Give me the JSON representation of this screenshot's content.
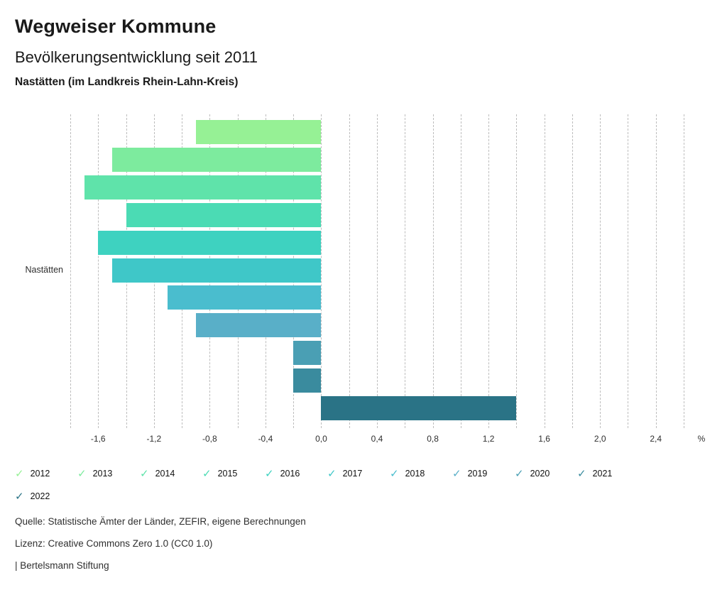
{
  "header": {
    "title": "Wegweiser Kommune",
    "subtitle": "Bevölkerungsentwicklung seit 2011",
    "region": "Nastätten (im Landkreis Rhein-Lahn-Kreis)"
  },
  "chart_data": {
    "type": "bar",
    "orientation": "horizontal",
    "title": "Bevölkerungsentwicklung seit 2011",
    "category": "Nastätten",
    "unit": "%",
    "xlim": [
      -1.8,
      2.6
    ],
    "grid_step": 0.2,
    "grid": true,
    "legend_position": "bottom",
    "axis_unit_label": "%",
    "ticks": [
      {
        "value": -1.6,
        "label": "-1,6"
      },
      {
        "value": -1.2,
        "label": "-1,2"
      },
      {
        "value": -0.8,
        "label": "-0,8"
      },
      {
        "value": -0.4,
        "label": "-0,4"
      },
      {
        "value": 0.0,
        "label": "0,0"
      },
      {
        "value": 0.4,
        "label": "0,4"
      },
      {
        "value": 0.8,
        "label": "0,8"
      },
      {
        "value": 1.2,
        "label": "1,2"
      },
      {
        "value": 1.6,
        "label": "1,6"
      },
      {
        "value": 2.0,
        "label": "2,0"
      },
      {
        "value": 2.4,
        "label": "2,4"
      }
    ],
    "series": [
      {
        "name": "2012",
        "value": -0.9,
        "color": "#96F195"
      },
      {
        "name": "2013",
        "value": -1.5,
        "color": "#7DEB9E"
      },
      {
        "name": "2014",
        "value": -1.7,
        "color": "#5FE3AA"
      },
      {
        "name": "2015",
        "value": -1.4,
        "color": "#4BDBB4"
      },
      {
        "name": "2016",
        "value": -1.6,
        "color": "#3ED2C0"
      },
      {
        "name": "2017",
        "value": -1.5,
        "color": "#3FC7C8"
      },
      {
        "name": "2018",
        "value": -1.1,
        "color": "#4ABDCE"
      },
      {
        "name": "2019",
        "value": -0.9,
        "color": "#59AFC8"
      },
      {
        "name": "2020",
        "value": -0.2,
        "color": "#4A9FB4"
      },
      {
        "name": "2021",
        "value": -0.2,
        "color": "#3A8B9E"
      },
      {
        "name": "2022",
        "value": 1.4,
        "color": "#2A7386"
      }
    ]
  },
  "legend": {
    "check_glyph": "✓"
  },
  "footer": {
    "source": "Quelle: Statistische Ämter der Länder, ZEFIR, eigene Berechnungen",
    "license": "Lizenz: Creative Commons Zero 1.0 (CC0 1.0)",
    "attribution": "| Bertelsmann Stiftung"
  }
}
